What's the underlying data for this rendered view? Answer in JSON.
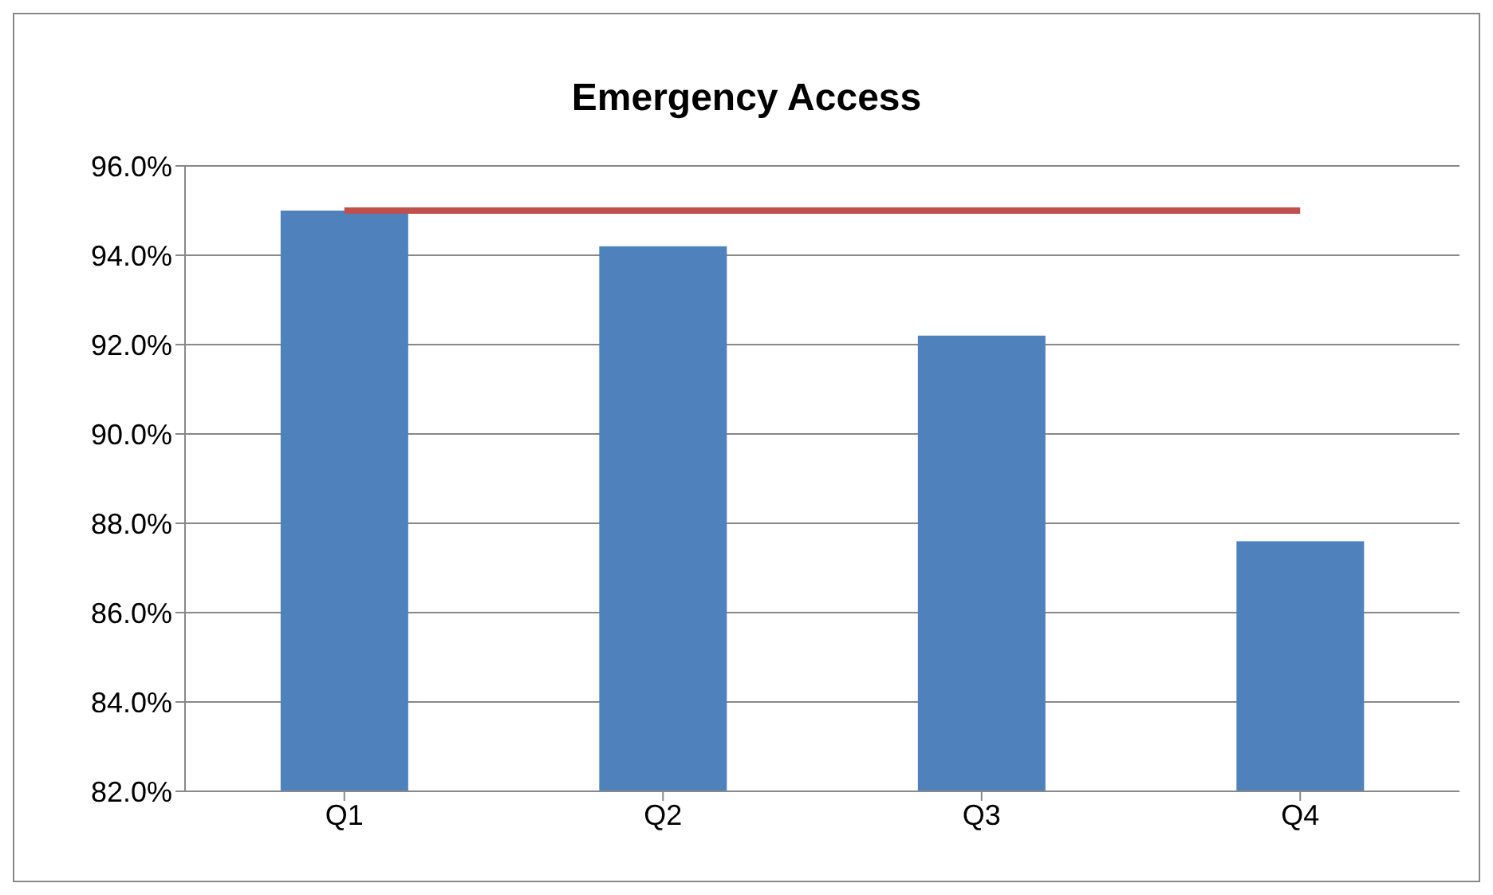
{
  "chart_data": {
    "type": "bar",
    "title": "Emergency Access",
    "categories": [
      "Q1",
      "Q2",
      "Q3",
      "Q4"
    ],
    "series": [
      {
        "color": "#4f81bd",
        "values": [
          95.0,
          94.2,
          92.2,
          87.6
        ]
      },
      {
        "type": "line",
        "color": "#c0504d",
        "values": [
          95.0,
          95.0,
          95.0,
          95.0
        ]
      }
    ],
    "ylim": [
      82,
      96
    ],
    "yticks": [
      {
        "value": 82,
        "label": "82.0%"
      },
      {
        "value": 84,
        "label": "84.0%"
      },
      {
        "value": 86,
        "label": "86.0%"
      },
      {
        "value": 88,
        "label": "88.0%"
      },
      {
        "value": 90,
        "label": "90.0%"
      },
      {
        "value": 92,
        "label": "92.0%"
      },
      {
        "value": 94,
        "label": "94.0%"
      },
      {
        "value": 96,
        "label": "96.0%"
      }
    ],
    "grid": "y",
    "legend": false
  }
}
